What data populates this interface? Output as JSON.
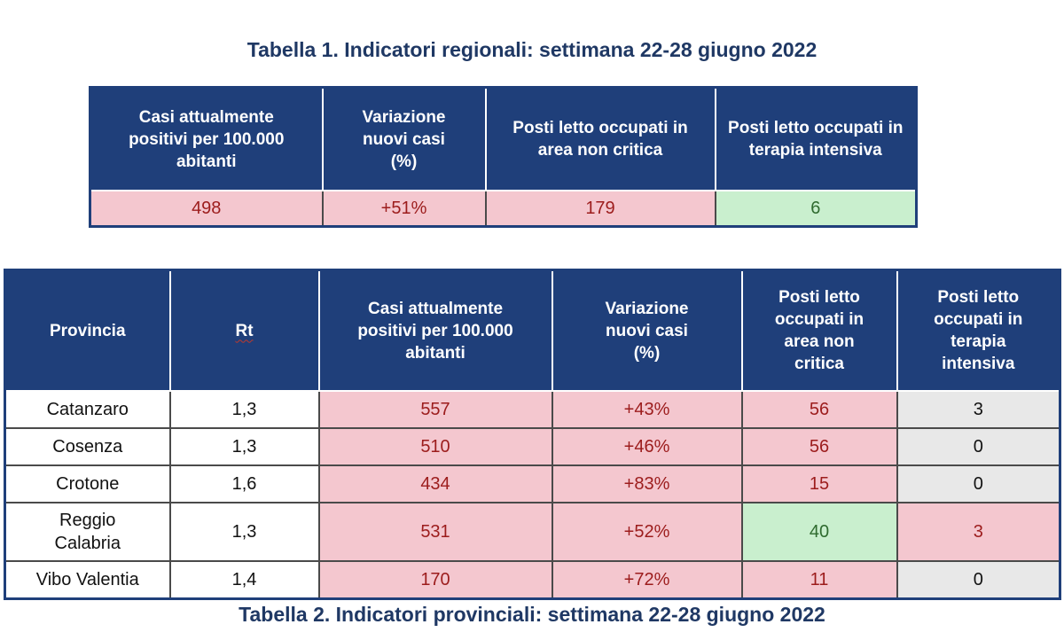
{
  "table1": {
    "caption": "Tabella 1. Indicatori regionali: settimana 22-28 giugno 2022",
    "headers": [
      "Casi attualmente positivi per 100.000 abitanti",
      "Variazione nuovi casi (%)",
      "Posti letto occupati in area non critica",
      "Posti letto occupati in terapia intensiva"
    ],
    "values": [
      "498",
      "+51%",
      "179",
      "6"
    ],
    "colors": {
      "alert": "#f4c7cf",
      "ok": "#c9efce",
      "header": "#1f3f7a"
    }
  },
  "table2": {
    "caption": "Tabella 2. Indicatori provinciali: settimana 22-28 giugno 2022",
    "headers": [
      "Provincia",
      "Rt",
      "Casi attualmente positivi per 100.000 abitanti",
      "Variazione nuovi casi (%)",
      "Posti letto occupati in area non critica",
      "Posti letto occupati in terapia intensiva"
    ],
    "rows": [
      {
        "provincia": "Catanzaro",
        "rt": "1,3",
        "casi": "557",
        "variazione": "+43%",
        "non_critica": "56",
        "intensiva": "3"
      },
      {
        "provincia": "Cosenza",
        "rt": "1,3",
        "casi": "510",
        "variazione": "+46%",
        "non_critica": "56",
        "intensiva": "0"
      },
      {
        "provincia": "Crotone",
        "rt": "1,6",
        "casi": "434",
        "variazione": "+83%",
        "non_critica": "15",
        "intensiva": "0"
      },
      {
        "provincia": "Reggio Calabria",
        "rt": "1,3",
        "casi": "531",
        "variazione": "+52%",
        "non_critica": "40",
        "intensiva": "3"
      },
      {
        "provincia": "Vibo Valentia",
        "rt": "1,4",
        "casi": "170",
        "variazione": "+72%",
        "non_critica": "11",
        "intensiva": "0"
      }
    ],
    "colors": {
      "alert": "#f4c7cf",
      "ok": "#c9efce",
      "neutral": "#e8e8e8",
      "header": "#1f3f7a"
    }
  }
}
